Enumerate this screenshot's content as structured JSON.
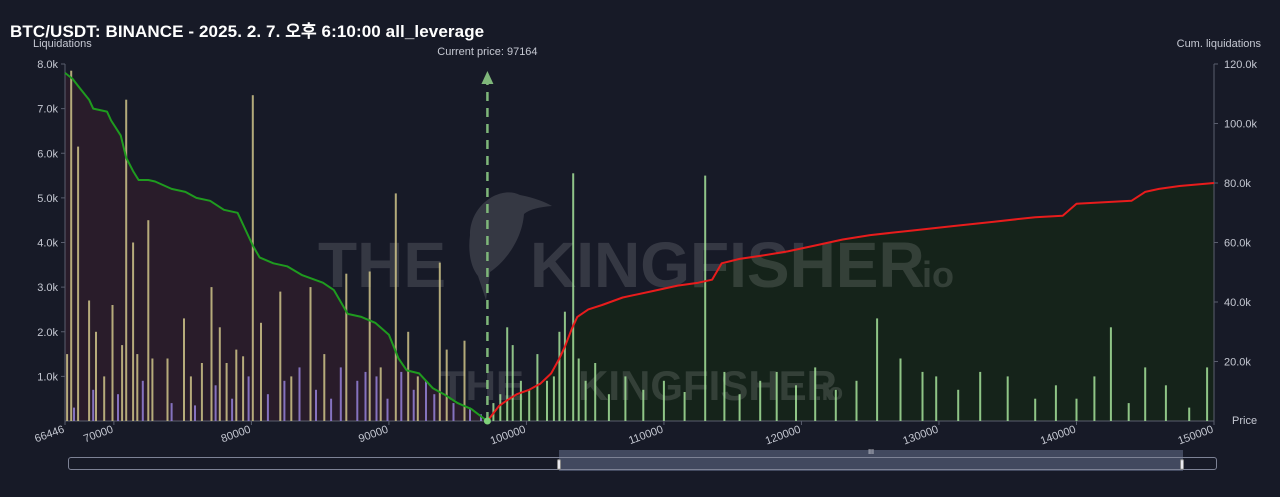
{
  "title": "BTC/USDT: BINANCE - 2025. 2. 7. 오후 6:10:00 all_leverage",
  "watermark": {
    "line1_left": "THE",
    "line1_right": "KINGFISHER",
    "line1_suffix": ".io",
    "line2_left": "THE",
    "line2_right": "KINGFISHER",
    "line2_suffix": ".io"
  },
  "colors": {
    "background": "#171a27",
    "short_area": "#2a1c2a",
    "long_area": "#152419",
    "cum_long_line": "#1f9b1f",
    "cum_short_line": "#e81c1c",
    "bar_yellow": "#cfc48a",
    "bar_purple": "#9581d9",
    "bar_green": "#a4e29a",
    "current_price_line": "#7fb77a"
  },
  "chart_data": {
    "type": "bar",
    "title": "BTC/USDT: BINANCE - 2025. 2. 7. 오후 6:10:00 all_leverage",
    "xlabel": "Price",
    "ylabel": "Liquidations",
    "y2label": "Cum. liquidations",
    "current_price_label": "Current price: 97164",
    "current_price": 97164,
    "xlim": [
      66446,
      150000
    ],
    "ylim": [
      0,
      8000
    ],
    "y2lim": [
      0,
      120000
    ],
    "x_ticks": [
      66446,
      70000,
      80000,
      90000,
      100000,
      110000,
      120000,
      130000,
      140000,
      150000
    ],
    "x_tick_labels": [
      "66446",
      "70000",
      "80000",
      "90000",
      "100000",
      "110000",
      "120000",
      "130000",
      "140000",
      "150000"
    ],
    "y_ticks": [
      1000,
      2000,
      3000,
      4000,
      5000,
      6000,
      7000,
      8000
    ],
    "y_tick_labels": [
      "1.0k",
      "2.0k",
      "3.0k",
      "4.0k",
      "5.0k",
      "6.0k",
      "7.0k",
      "8.0k"
    ],
    "y2_ticks": [
      20000,
      40000,
      60000,
      80000,
      100000,
      120000
    ],
    "y2_tick_labels": [
      "20.0k",
      "40.0k",
      "60.0k",
      "80.0k",
      "100.0k",
      "120.0k"
    ],
    "grid": false,
    "legend": "none",
    "series": [
      {
        "kind": "bars",
        "side": "long",
        "x": [
          66600,
          66900,
          67400,
          68200,
          68700,
          69300,
          69900,
          70600,
          70900,
          71400,
          71700,
          72500,
          72800,
          73900,
          75100,
          75600,
          76400,
          77100,
          77700,
          78200,
          78900,
          79400,
          80100,
          80700,
          82100,
          82900,
          84300,
          85300,
          86900,
          88600,
          89400,
          90500,
          91400,
          92100,
          93700,
          94200,
          95500
        ],
        "values": [
          1500,
          7850,
          6150,
          2700,
          2000,
          1000,
          2600,
          1700,
          7200,
          4000,
          1500,
          4500,
          1400,
          1400,
          2300,
          1000,
          1300,
          3000,
          2100,
          1300,
          1600,
          1450,
          7300,
          2200,
          2900,
          1000,
          3000,
          1500,
          3300,
          3350,
          1200,
          5100,
          2000,
          1000,
          3550,
          1600,
          1800
        ],
        "color": "#cfc48a"
      },
      {
        "kind": "bars",
        "side": "long",
        "x": [
          67100,
          68500,
          70300,
          72100,
          74200,
          75900,
          77400,
          78600,
          79800,
          81200,
          82400,
          83500,
          84700,
          85800,
          86500,
          87700,
          88300,
          89100,
          89900,
          90900,
          91800,
          92700,
          93300,
          94700,
          95900,
          96700
        ],
        "values": [
          300,
          700,
          600,
          900,
          400,
          350,
          800,
          500,
          1000,
          600,
          900,
          1200,
          700,
          500,
          1200,
          900,
          1100,
          1000,
          500,
          1100,
          700,
          900,
          600,
          400,
          300,
          150
        ],
        "color": "#9581d9"
      },
      {
        "kind": "bars",
        "side": "short",
        "x": [
          97600,
          98100,
          98600,
          99000,
          99600,
          100200,
          100800,
          101500,
          102000,
          102400,
          102800,
          103400,
          103800,
          104300,
          105000,
          106000,
          107200,
          108500,
          110000,
          111500,
          113000,
          114400,
          115500,
          117000,
          118200,
          119600,
          121000,
          122500,
          124000,
          125500,
          127200,
          128800,
          129800,
          131400,
          133000,
          135000,
          137000,
          138500,
          140000,
          141300,
          142500,
          143800,
          145000,
          146500,
          148200,
          149500
        ],
        "values": [
          400,
          600,
          2100,
          1700,
          900,
          700,
          1500,
          900,
          1000,
          2000,
          2450,
          5550,
          1400,
          900,
          1300,
          600,
          1000,
          700,
          900,
          650,
          5500,
          1100,
          600,
          900,
          1100,
          800,
          1200,
          700,
          900,
          2300,
          1400,
          1100,
          1000,
          700,
          1100,
          1000,
          500,
          800,
          500,
          1000,
          2100,
          400,
          1200,
          800,
          300,
          1200
        ],
        "color": "#a4e29a"
      },
      {
        "kind": "line",
        "name": "",
        "axis": "right",
        "x": [
          66446,
          67000,
          67500,
          68200,
          68500,
          69500,
          69800,
          70500,
          70900,
          71400,
          71800,
          72500,
          73000,
          74200,
          75200,
          76000,
          77000,
          78000,
          79000,
          80100,
          80600,
          81600,
          82600,
          83700,
          85200,
          86000,
          87000,
          88000,
          89000,
          90000,
          90700,
          91300,
          92200,
          93200,
          94000,
          95000,
          96000,
          97000
        ],
        "values": [
          117000,
          115000,
          112000,
          108000,
          105000,
          104000,
          101000,
          96000,
          88500,
          84000,
          81000,
          81000,
          80500,
          78000,
          77000,
          75000,
          74000,
          71000,
          70000,
          59000,
          55000,
          53000,
          52000,
          49000,
          46500,
          44000,
          36000,
          35000,
          33000,
          29000,
          21000,
          17000,
          16000,
          11000,
          9000,
          6000,
          4000,
          500
        ],
        "color": "#1f9b1f"
      },
      {
        "kind": "line",
        "name": "",
        "axis": "right",
        "x": [
          97164,
          98000,
          98600,
          99300,
          100200,
          101000,
          101800,
          102400,
          102800,
          103300,
          103700,
          104500,
          105500,
          107000,
          109000,
          111000,
          112500,
          113500,
          114200,
          115500,
          117000,
          119000,
          121000,
          123000,
          125000,
          128000,
          131000,
          134000,
          137000,
          139000,
          140000,
          142000,
          144000,
          145000,
          146000,
          147500,
          150000
        ],
        "values": [
          0,
          5000,
          7000,
          9000,
          10500,
          12500,
          16000,
          21000,
          25000,
          31000,
          35000,
          37500,
          39000,
          41500,
          43500,
          45500,
          46500,
          47500,
          53000,
          54500,
          55500,
          57000,
          59000,
          61000,
          62500,
          64000,
          65500,
          67000,
          68500,
          69000,
          73000,
          73500,
          74000,
          77000,
          78000,
          79000,
          80000
        ],
        "color": "#e81c1c"
      }
    ]
  },
  "navigator": {
    "grip": "III"
  }
}
